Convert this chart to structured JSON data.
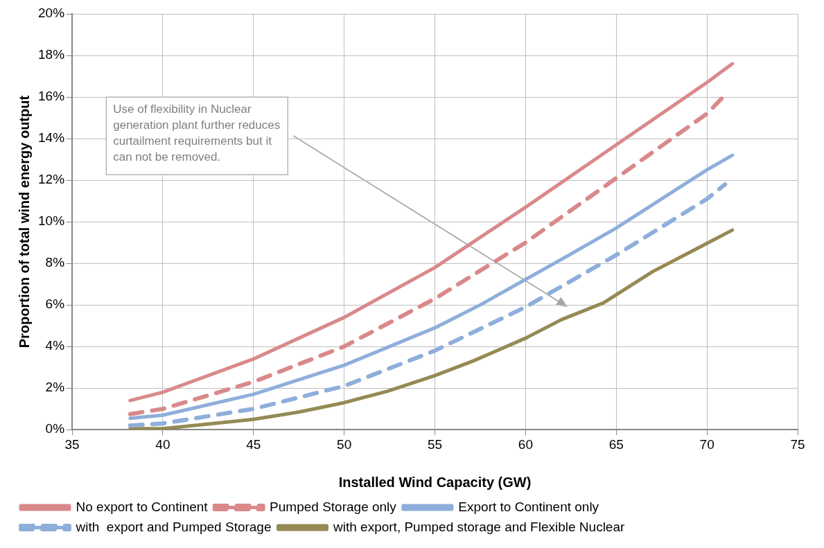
{
  "chart_data": {
    "type": "line",
    "xlabel": "Installed Wind Capacity (GW)",
    "ylabel": "Proportion of total wind energy output",
    "xlim": [
      35,
      75
    ],
    "xticks": [
      35,
      40,
      45,
      50,
      55,
      60,
      65,
      70,
      75
    ],
    "ylim": [
      0,
      20
    ],
    "yticks": [
      {
        "value": 0,
        "label": "0%"
      },
      {
        "value": 2,
        "label": "2%"
      },
      {
        "value": 4,
        "label": "4%"
      },
      {
        "value": 6,
        "label": "6%"
      },
      {
        "value": 8,
        "label": "8%"
      },
      {
        "value": 10,
        "label": "10%"
      },
      {
        "value": 12,
        "label": "12%"
      },
      {
        "value": 14,
        "label": "14%"
      },
      {
        "value": 16,
        "label": "16%"
      },
      {
        "value": 18,
        "label": "18%"
      },
      {
        "value": 20,
        "label": "20%"
      }
    ],
    "grid": true,
    "legend": "bottom",
    "marker": "none",
    "series": [
      {
        "name": "No export to Continent",
        "color": "#d9898a",
        "line_style": "solid",
        "x": [
          38.2,
          40,
          45,
          50,
          55,
          60,
          65,
          70,
          71.4
        ],
        "values": [
          1.4,
          1.8,
          3.4,
          5.4,
          7.8,
          10.7,
          13.7,
          16.7,
          17.6
        ]
      },
      {
        "name": "Pumped Storage only",
        "color": "#d9898a",
        "line_style": "dashed",
        "x": [
          38.2,
          40,
          45,
          50,
          55,
          60,
          65,
          70,
          71
        ],
        "values": [
          0.75,
          1.0,
          2.3,
          4.0,
          6.3,
          9.0,
          12.1,
          15.2,
          16.1
        ]
      },
      {
        "name": "Export to Continent only",
        "color": "#8eaedb",
        "line_style": "solid",
        "x": [
          38.2,
          40,
          45,
          50,
          55,
          57.5,
          62.5,
          65,
          70,
          71.4
        ],
        "values": [
          0.55,
          0.7,
          1.7,
          3.1,
          4.9,
          6.0,
          8.45,
          9.7,
          12.5,
          13.2
        ]
      },
      {
        "name": "with  export and Pumped Storage",
        "color": "#8eaedb",
        "line_style": "dashed",
        "x": [
          38.2,
          40,
          45,
          50,
          55,
          60,
          65,
          70,
          71
        ],
        "values": [
          0.2,
          0.3,
          1.0,
          2.1,
          3.8,
          5.9,
          8.4,
          11.1,
          11.8
        ]
      },
      {
        "name": "with export, Pumped storage and Flexible Nuclear",
        "color": "#948a54",
        "line_style": "solid",
        "x": [
          38.2,
          40,
          42.8,
          45,
          47.5,
          50,
          52.4,
          55,
          57.1,
          60,
          62,
          64.3,
          67,
          71.4
        ],
        "values": [
          0.05,
          0.05,
          0.3,
          0.5,
          0.85,
          1.3,
          1.85,
          2.6,
          3.3,
          4.4,
          5.3,
          6.1,
          7.6,
          9.6
        ]
      }
    ],
    "annotations": [
      "Use of flexibility in Nuclear generation plant further reduces curtailment requirements but it can not be removed."
    ]
  }
}
